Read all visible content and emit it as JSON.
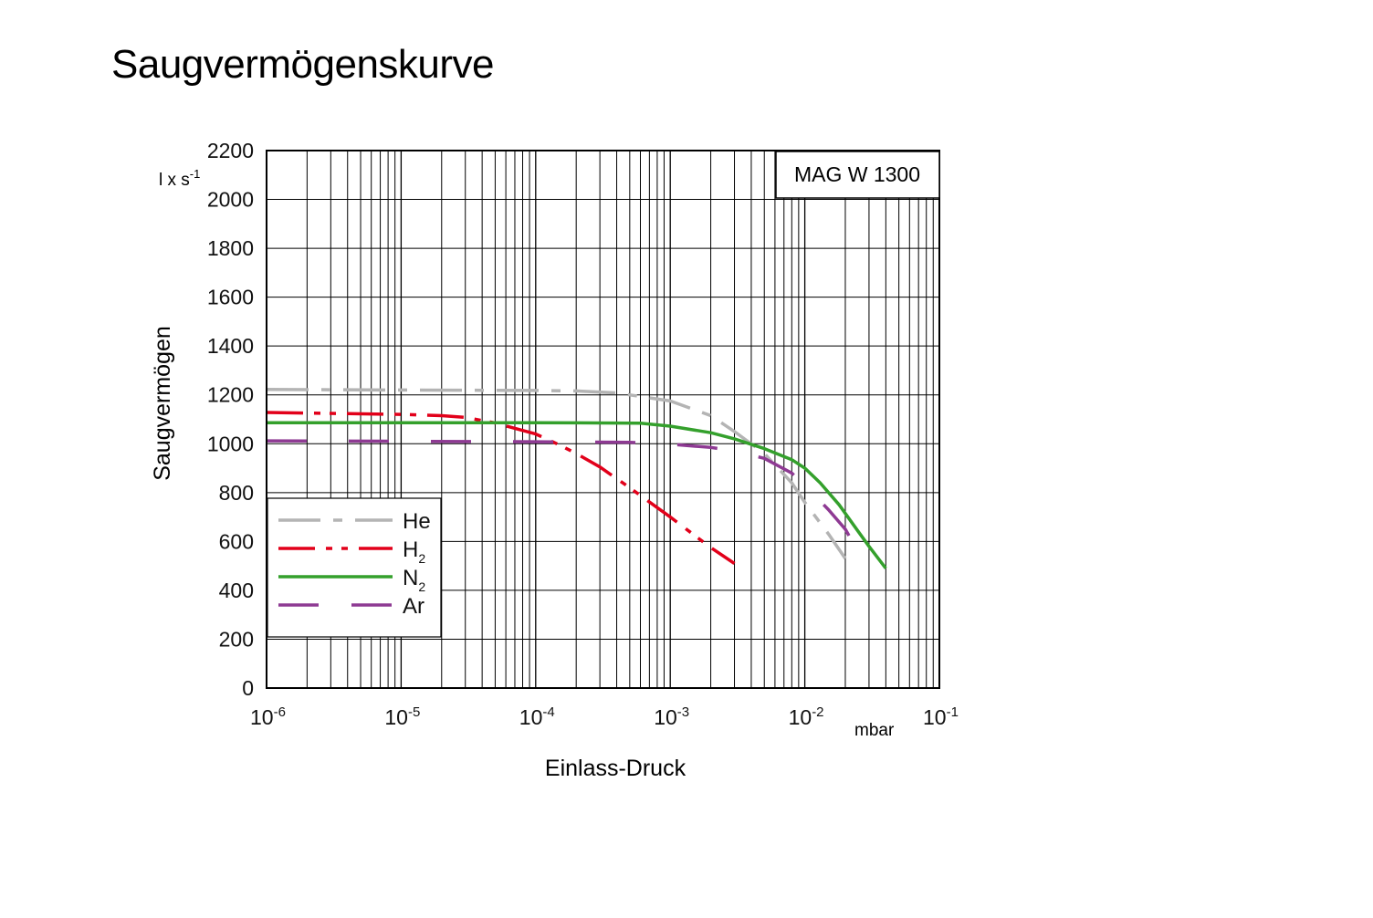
{
  "page": {
    "title": "Saugvermögenskurve"
  },
  "chart_data": {
    "type": "line",
    "title": "Saugvermögenskurve",
    "model_label": "MAG W 1300",
    "xlabel": "Einlass-Druck",
    "x_unit": "mbar",
    "ylabel": "Saugvermögen",
    "y_unit": "l x s",
    "y_unit_exp": "-1",
    "xscale": "log",
    "xlim": [
      1e-06,
      0.1
    ],
    "ylim": [
      0,
      2200
    ],
    "grid": true,
    "x_ticks": [
      {
        "value": 1e-06,
        "base": "10",
        "exp": "-6"
      },
      {
        "value": 1e-05,
        "base": "10",
        "exp": "-5"
      },
      {
        "value": 0.0001,
        "base": "10",
        "exp": "-4"
      },
      {
        "value": 0.001,
        "base": "10",
        "exp": "-3"
      },
      {
        "value": 0.01,
        "base": "10",
        "exp": "-2"
      },
      {
        "value": 0.1,
        "base": "10",
        "exp": "-1"
      }
    ],
    "y_ticks": [
      "0",
      "200",
      "400",
      "600",
      "800",
      "1000",
      "1200",
      "1400",
      "1600",
      "1800",
      "2000",
      "2200"
    ],
    "legend_position": "bottom-left",
    "series": [
      {
        "name": "He",
        "sub": "",
        "color": "#b4b4b4",
        "style": "dashdot",
        "points": [
          [
            1e-06,
            1222
          ],
          [
            1e-05,
            1220
          ],
          [
            0.0001,
            1218
          ],
          [
            0.0002,
            1216
          ],
          [
            0.0004,
            1208
          ],
          [
            0.001,
            1175
          ],
          [
            0.002,
            1115
          ],
          [
            0.003,
            1050
          ],
          [
            0.005,
            960
          ],
          [
            0.008,
            840
          ],
          [
            0.01,
            760
          ],
          [
            0.015,
            630
          ],
          [
            0.02,
            530
          ]
        ]
      },
      {
        "name": "H",
        "sub": "2",
        "color": "#e2001a",
        "style": "dashdotdot",
        "points": [
          [
            1e-06,
            1128
          ],
          [
            1e-05,
            1120
          ],
          [
            2e-05,
            1115
          ],
          [
            3e-05,
            1108
          ],
          [
            5e-05,
            1085
          ],
          [
            0.0001,
            1040
          ],
          [
            0.00015,
            995
          ],
          [
            0.0002,
            960
          ],
          [
            0.0003,
            905
          ],
          [
            0.0005,
            820
          ],
          [
            0.001,
            700
          ],
          [
            0.002,
            575
          ],
          [
            0.003,
            510
          ]
        ]
      },
      {
        "name": "N",
        "sub": "2",
        "color": "#34a02c",
        "style": "solid",
        "points": [
          [
            1e-06,
            1086
          ],
          [
            1e-05,
            1086
          ],
          [
            0.0001,
            1086
          ],
          [
            0.0003,
            1085
          ],
          [
            0.0006,
            1084
          ],
          [
            0.001,
            1072
          ],
          [
            0.002,
            1045
          ],
          [
            0.003,
            1020
          ],
          [
            0.005,
            980
          ],
          [
            0.008,
            935
          ],
          [
            0.01,
            900
          ],
          [
            0.013,
            840
          ],
          [
            0.018,
            750
          ],
          [
            0.025,
            640
          ],
          [
            0.03,
            580
          ],
          [
            0.04,
            490
          ]
        ]
      },
      {
        "name": "Ar",
        "sub": "",
        "color": "#8e3a93",
        "style": "longdash",
        "points": [
          [
            1e-06,
            1012
          ],
          [
            1e-05,
            1010
          ],
          [
            0.0001,
            1008
          ],
          [
            0.0005,
            1006
          ],
          [
            0.001,
            998
          ],
          [
            0.002,
            985
          ],
          [
            0.003,
            970
          ],
          [
            0.005,
            940
          ],
          [
            0.008,
            880
          ],
          [
            0.01,
            830
          ],
          [
            0.015,
            730
          ],
          [
            0.02,
            650
          ],
          [
            0.022,
            610
          ]
        ]
      }
    ]
  }
}
